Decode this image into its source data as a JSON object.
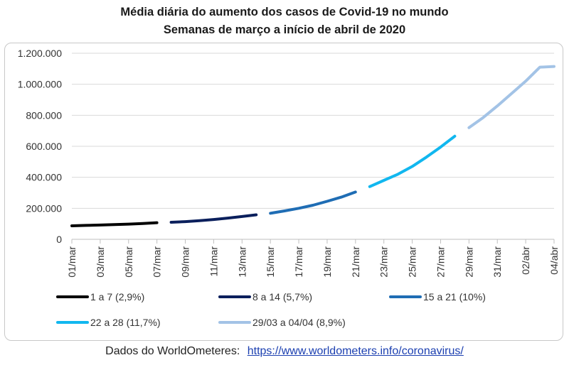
{
  "title": "Média diária do aumento dos casos de Covid-19 no mundo",
  "subtitle": "Semanas de março a início de abril de 2020",
  "footer": {
    "source_text": "Dados do WorldOmeteres:",
    "link_text": "https://www.worldometers.info/coronavirus/"
  },
  "chart_data": {
    "type": "line",
    "y_ticks": [
      "0",
      "200.000",
      "400.000",
      "600.000",
      "800.000",
      "1.000.000",
      "1.200.000"
    ],
    "ylim": [
      0,
      1200000
    ],
    "x_tick_labels": [
      "01/mar",
      "03/mar",
      "05/mar",
      "07/mar",
      "09/mar",
      "11/mar",
      "13/mar",
      "15/mar",
      "17/mar",
      "19/mar",
      "21/mar",
      "23/mar",
      "25/mar",
      "27/mar",
      "29/mar",
      "31/mar",
      "02/abr",
      "04/abr"
    ],
    "grid": true,
    "legend_position": "bottom",
    "series": [
      {
        "name": "1 a 7 (2,9%)",
        "color": "#000000",
        "x": [
          1,
          2,
          3,
          4,
          5,
          6,
          7
        ],
        "y": [
          87000,
          90000,
          92000,
          95000,
          98000,
          102000,
          107000
        ]
      },
      {
        "name": "8 a 14 (5,7%)",
        "color": "#0a1f5c",
        "x": [
          8,
          9,
          10,
          11,
          12,
          13,
          14
        ],
        "y": [
          110000,
          114000,
          120000,
          128000,
          137000,
          147000,
          158000
        ]
      },
      {
        "name": "15 a 21 (10%)",
        "color": "#1f6db4",
        "x": [
          15,
          16,
          17,
          18,
          19,
          20,
          21
        ],
        "y": [
          168000,
          183000,
          200000,
          220000,
          245000,
          272000,
          305000
        ]
      },
      {
        "name": "22 a 28 (11,7%)",
        "color": "#11b7ef",
        "x": [
          22,
          23,
          24,
          25,
          26,
          27,
          28
        ],
        "y": [
          340000,
          380000,
          420000,
          470000,
          530000,
          595000,
          665000
        ]
      },
      {
        "name": "29/03 a 04/04 (8,9%)",
        "color": "#a3c3e6",
        "x": [
          29,
          30,
          31,
          32,
          33,
          34,
          35
        ],
        "y": [
          720000,
          785000,
          860000,
          940000,
          1020000,
          1110000,
          1115000
        ]
      }
    ]
  }
}
